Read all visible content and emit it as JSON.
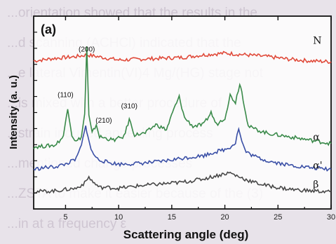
{
  "chart_data": {
    "type": "line",
    "panel_label": "(a)",
    "xlabel": "Scattering angle (deg)",
    "ylabel": "Intensity (a. u.)",
    "xlim": [
      2,
      30
    ],
    "xticks": [
      5,
      10,
      15,
      20,
      25,
      30
    ],
    "grid": false,
    "series": [
      {
        "name": "N",
        "color": "#e04a3a",
        "x": [
          2,
          4,
          6,
          7,
          8,
          10,
          12,
          14,
          16,
          18,
          20,
          22,
          24,
          26,
          28,
          30
        ],
        "y": [
          8.6,
          8.75,
          8.85,
          8.95,
          8.85,
          8.65,
          8.7,
          8.75,
          8.8,
          8.95,
          9.05,
          8.95,
          8.85,
          8.7,
          8.6,
          8.55
        ]
      },
      {
        "name": "α",
        "color": "#3a8a4a",
        "x": [
          2,
          3,
          4,
          4.8,
          5.2,
          5.6,
          6,
          6.5,
          6.8,
          7,
          7.2,
          7.5,
          7.9,
          8.2,
          8.8,
          9.5,
          10.5,
          11.0,
          11.5,
          12.5,
          13.5,
          14.5,
          15.2,
          15.7,
          16.2,
          17,
          18,
          18.7,
          19.2,
          20,
          20.5,
          21,
          21.4,
          21.6,
          22.2,
          23,
          24,
          25,
          26,
          27,
          28,
          29,
          30
        ],
        "y": [
          3.6,
          3.65,
          3.7,
          4.2,
          5.9,
          4.3,
          3.9,
          4.2,
          5.5,
          9.4,
          5.4,
          4.4,
          4.9,
          4.2,
          4.1,
          4.0,
          4.2,
          5.2,
          4.3,
          4.4,
          4.9,
          4.6,
          5.8,
          6.5,
          5.3,
          4.8,
          4.9,
          5.6,
          4.9,
          5.3,
          6.6,
          6.2,
          7.3,
          6.8,
          4.8,
          4.6,
          4.4,
          4.3,
          4.2,
          4.1,
          4.0,
          3.9,
          3.8
        ]
      },
      {
        "name": "α'",
        "color": "#3a4fa6",
        "x": [
          2,
          3,
          4,
          5,
          6,
          6.5,
          6.9,
          7.1,
          7.4,
          8,
          9,
          10,
          12,
          14,
          16,
          18,
          19,
          20,
          20.5,
          21,
          21.3,
          21.6,
          22,
          23,
          24,
          26,
          28,
          30
        ],
        "y": [
          2.3,
          2.4,
          2.45,
          2.6,
          2.9,
          3.7,
          4.8,
          4.3,
          3.4,
          2.9,
          2.7,
          2.6,
          2.65,
          2.75,
          2.95,
          3.1,
          3.3,
          3.45,
          3.6,
          3.85,
          4.7,
          3.9,
          3.3,
          3.0,
          2.8,
          2.55,
          2.4,
          2.3
        ]
      },
      {
        "name": "β",
        "color": "#484848",
        "x": [
          2,
          4,
          6,
          6.8,
          7.2,
          7.6,
          8.2,
          9,
          10,
          12,
          14,
          16,
          18,
          19,
          20,
          20.5,
          21,
          22,
          23,
          24,
          26,
          28,
          30
        ],
        "y": [
          1.0,
          1.05,
          1.2,
          1.5,
          1.85,
          1.55,
          1.25,
          1.25,
          1.2,
          1.35,
          1.45,
          1.55,
          1.75,
          1.9,
          2.05,
          2.1,
          1.95,
          1.7,
          1.5,
          1.35,
          1.15,
          1.05,
          1.0
        ]
      }
    ],
    "series_labels": [
      {
        "text": "N",
        "x": 28.3,
        "y": 9.6
      },
      {
        "text": "α",
        "x": 28.3,
        "y": 4.0
      },
      {
        "text": "α'",
        "x": 28.3,
        "y": 2.35
      },
      {
        "text": "β",
        "x": 28.3,
        "y": 1.25
      }
    ],
    "peak_labels": [
      {
        "text": "(200)",
        "x": 7.0,
        "y": 9.15
      },
      {
        "text": "(110)",
        "x": 5.0,
        "y": 6.5
      },
      {
        "text": "(210)",
        "x": 8.6,
        "y": 5.0
      },
      {
        "text": "(310)",
        "x": 11.0,
        "y": 5.85
      }
    ],
    "ylim": [
      0,
      11.2
    ]
  },
  "background_text": [
    "...orientation showed that the results in the",
    "...d scanning (ACHCl) indicated that the",
    "...e lateral Vimentin(VI)4 Mg/(HG) stage not",
    "...is mixed with a better procedure of",
    "...strain induced annealing process",
    "...mentioned change processes",
    "...ZSTA to make it easier because of the (3)",
    "...in at a frequency ε"
  ]
}
